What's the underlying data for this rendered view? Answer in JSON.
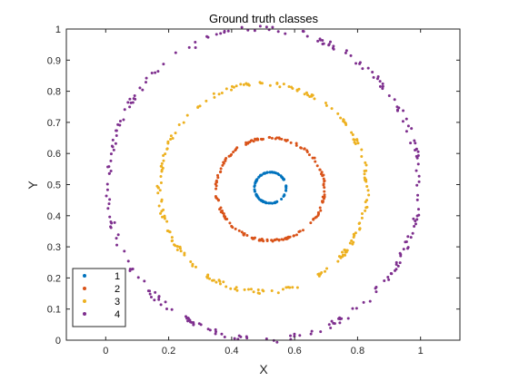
{
  "chart_data": {
    "type": "scatter",
    "title": "Ground truth classes",
    "xlabel": "X",
    "ylabel": "Y",
    "xlim": [
      -0.125,
      1.125
    ],
    "ylim": [
      0,
      1
    ],
    "xticks": [
      "0",
      "0.2",
      "0.4",
      "0.6",
      "0.8",
      "1"
    ],
    "xtick_values": [
      0,
      0.2,
      0.4,
      0.6,
      0.8,
      1
    ],
    "yticks": [
      "0",
      "0.1",
      "0.2",
      "0.3",
      "0.4",
      "0.5",
      "0.6",
      "0.7",
      "0.8",
      "0.9",
      "1"
    ],
    "ytick_values": [
      0,
      0.1,
      0.2,
      0.3,
      0.4,
      0.5,
      0.6,
      0.7,
      0.8,
      0.9,
      1
    ],
    "grid": false,
    "legend_position": "bottom-left",
    "series": [
      {
        "name": "1",
        "color": "#0072BD",
        "ring": {
          "cx": 0.523,
          "cy": 0.49,
          "rx": 0.05,
          "ry": 0.05
        },
        "count": 90
      },
      {
        "name": "2",
        "color": "#D95319",
        "ring": {
          "cx": 0.523,
          "cy": 0.485,
          "rx": 0.172,
          "ry": 0.165
        },
        "count": 160
      },
      {
        "name": "3",
        "color": "#EDB120",
        "ring": {
          "cx": 0.5,
          "cy": 0.49,
          "rx": 0.33,
          "ry": 0.335
        },
        "count": 210
      },
      {
        "name": "4",
        "color": "#7E2F8E",
        "ring": {
          "cx": 0.5,
          "cy": 0.5,
          "rx": 0.495,
          "ry": 0.5
        },
        "count": 240
      }
    ]
  }
}
